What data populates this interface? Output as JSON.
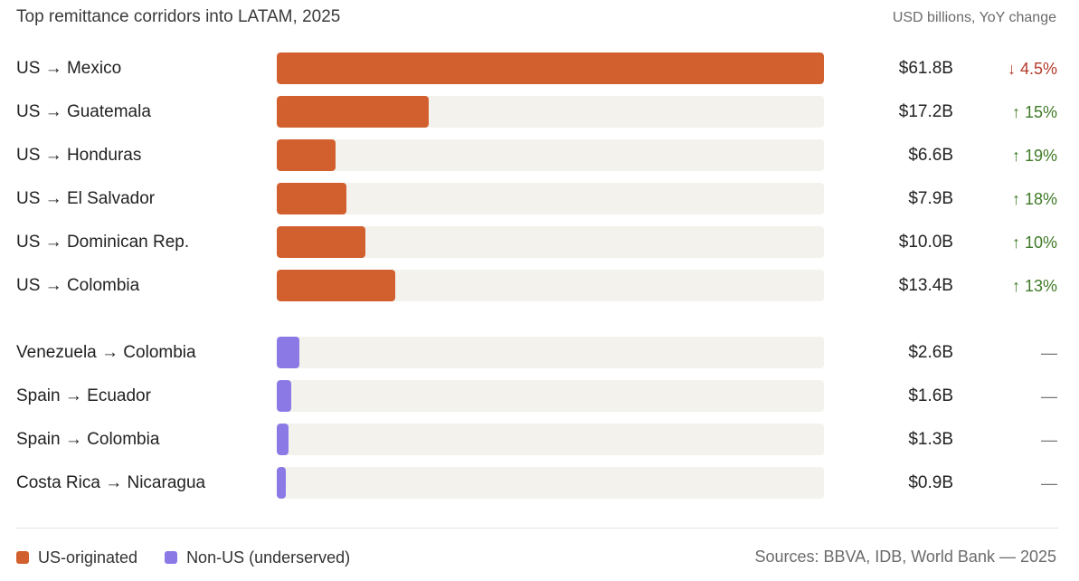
{
  "header": {
    "title": "Top remittance corridors into LATAM, 2025",
    "unit_note": "USD billions, YoY change"
  },
  "colors": {
    "us_originated": "#d2602f",
    "non_us": "#8b7ae6",
    "track": "#f3f2ec",
    "change_down": "#b23a2a",
    "change_up": "#3f7a26",
    "change_none": "#777777"
  },
  "chart_data": {
    "type": "bar",
    "orientation": "horizontal",
    "unit": "USD billions",
    "xlim": [
      0,
      61.8
    ],
    "groups": [
      {
        "name": "US-originated",
        "rows": [
          {
            "label": "US → Mexico",
            "value": 61.8,
            "value_label": "$61.8B",
            "change_label": "↓ 4.5%",
            "direction": "down"
          },
          {
            "label": "US → Guatemala",
            "value": 17.2,
            "value_label": "$17.2B",
            "change_label": "↑ 15%",
            "direction": "up"
          },
          {
            "label": "US → Honduras",
            "value": 6.6,
            "value_label": "$6.6B",
            "change_label": "↑ 19%",
            "direction": "up"
          },
          {
            "label": "US → El Salvador",
            "value": 7.9,
            "value_label": "$7.9B",
            "change_label": "↑ 18%",
            "direction": "up"
          },
          {
            "label": "US → Dominican Rep.",
            "value": 10.0,
            "value_label": "$10.0B",
            "change_label": "↑ 10%",
            "direction": "up"
          },
          {
            "label": "US → Colombia",
            "value": 13.4,
            "value_label": "$13.4B",
            "change_label": "↑ 13%",
            "direction": "up"
          }
        ]
      },
      {
        "name": "Non-US (underserved)",
        "rows": [
          {
            "label": "Venezuela → Colombia",
            "value": 2.6,
            "value_label": "$2.6B",
            "change_label": "—",
            "direction": "none"
          },
          {
            "label": "Spain → Ecuador",
            "value": 1.6,
            "value_label": "$1.6B",
            "change_label": "—",
            "direction": "none"
          },
          {
            "label": "Spain → Colombia",
            "value": 1.3,
            "value_label": "$1.3B",
            "change_label": "—",
            "direction": "none"
          },
          {
            "label": "Costa Rica → Nicaragua",
            "value": 0.9,
            "value_label": "$0.9B",
            "change_label": "—",
            "direction": "none"
          }
        ]
      }
    ],
    "legend": [
      {
        "label": "US-originated",
        "color": "#d2602f"
      },
      {
        "label": "Non-US (underserved)",
        "color": "#8b7ae6"
      }
    ],
    "legend_position": "bottom-left"
  },
  "footer": {
    "sources": "Sources: BBVA, IDB, World Bank — 2025"
  }
}
